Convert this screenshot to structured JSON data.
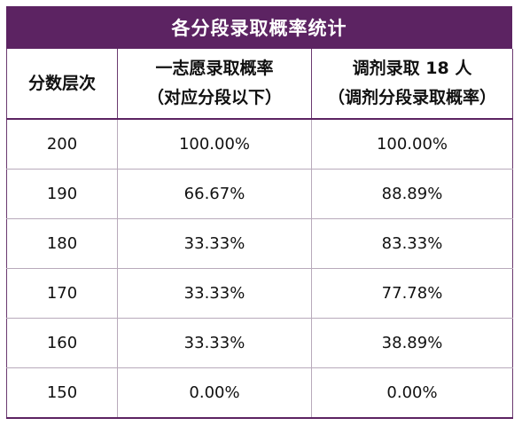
{
  "title": "各分段录取概率统计",
  "headers": {
    "col1": "分数层次",
    "col2_line1": "一志愿录取概率",
    "col2_line2": "（对应分段以下）",
    "col3_line1": "调剂录取 18 人",
    "col3_line2": "（调剂分段录取概率）"
  },
  "rows": [
    {
      "score": "200",
      "first_choice": "100.00%",
      "adjust": "100.00%"
    },
    {
      "score": "190",
      "first_choice": "66.67%",
      "adjust": "88.89%"
    },
    {
      "score": "180",
      "first_choice": "33.33%",
      "adjust": "83.33%"
    },
    {
      "score": "170",
      "first_choice": "33.33%",
      "adjust": "77.78%"
    },
    {
      "score": "160",
      "first_choice": "33.33%",
      "adjust": "38.89%"
    },
    {
      "score": "150",
      "first_choice": "0.00%",
      "adjust": "0.00%"
    }
  ],
  "colors": {
    "header_bg": "#5c2362",
    "header_text": "#ffffff"
  }
}
